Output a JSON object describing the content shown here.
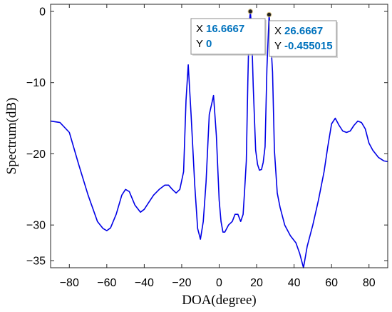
{
  "chart_data": {
    "type": "line",
    "title": "",
    "xlabel": "DOA(degree)",
    "ylabel": "Spectrum(dB)",
    "xlim": [
      -90,
      90
    ],
    "ylim": [
      -36,
      1
    ],
    "xticks": [
      -80,
      -60,
      -40,
      -20,
      0,
      20,
      40,
      60,
      80
    ],
    "yticks": [
      0,
      -10,
      -20,
      -30,
      -35
    ],
    "grid": false,
    "line_color": "#0000e6",
    "series": [
      {
        "name": "",
        "x": [
          -90,
          -85,
          -80,
          -75,
          -70,
          -65,
          -62,
          -60,
          -58,
          -55,
          -52,
          -50,
          -48,
          -45,
          -42,
          -40,
          -38,
          -35,
          -32,
          -29,
          -27,
          -25,
          -23,
          -21,
          -19,
          -17.7,
          -16.5,
          -15,
          -13,
          -11.5,
          -10,
          -8.5,
          -7,
          -5.3,
          -4,
          -3,
          -1.5,
          0,
          1,
          2,
          3,
          5,
          7,
          8.5,
          10,
          11.5,
          12.8,
          13.5,
          14.5,
          15.3,
          16,
          16.6667,
          17.3,
          18.2,
          19.5,
          20.5,
          21.5,
          22.6,
          23.5,
          24.5,
          25.5,
          26.6667,
          27.3,
          28.5,
          29.5,
          31,
          32.5,
          35,
          38,
          41,
          43,
          45,
          47,
          50,
          53,
          56,
          58,
          60,
          62,
          64,
          66,
          68,
          70,
          72,
          74,
          76,
          78,
          80,
          82,
          85,
          88,
          90
        ],
        "y": [
          -15.4,
          -15.6,
          -17.0,
          -21.5,
          -25.8,
          -29.5,
          -30.5,
          -30.8,
          -30.4,
          -28.5,
          -25.8,
          -25.0,
          -25.3,
          -27.2,
          -28.2,
          -27.8,
          -27.0,
          -25.8,
          -25.0,
          -24.4,
          -24.4,
          -25.0,
          -25.5,
          -25.0,
          -22.5,
          -12.5,
          -7.5,
          -14.5,
          -24.5,
          -30.5,
          -32.0,
          -29.5,
          -24.0,
          -14.5,
          -13.0,
          -11.8,
          -17.5,
          -26.5,
          -29.5,
          -31.0,
          -31.0,
          -30.0,
          -29.5,
          -28.5,
          -28.5,
          -29.5,
          -28.5,
          -25.5,
          -21.0,
          -10.0,
          -2.0,
          0.0,
          -2.5,
          -10.5,
          -19.5,
          -21.5,
          -22.3,
          -22.2,
          -21.2,
          -19.0,
          -8.0,
          -0.455015,
          -3.0,
          -8.5,
          -19.5,
          -25.5,
          -27.5,
          -30.0,
          -31.5,
          -32.5,
          -34.0,
          -36.0,
          -33.0,
          -30.0,
          -26.5,
          -22.5,
          -19.0,
          -15.8,
          -15.0,
          -16.0,
          -16.8,
          -17.0,
          -16.8,
          -16.0,
          -15.4,
          -15.6,
          -16.5,
          -18.5,
          -19.5,
          -20.5,
          -21.0,
          -21.1
        ]
      }
    ],
    "datatips": [
      {
        "x_key": "X",
        "x_val": "16.6667",
        "y_key": "Y",
        "y_val": "0",
        "x": 16.6667,
        "y": 0
      },
      {
        "x_key": "X",
        "x_val": "26.6667",
        "y_key": "Y",
        "y_val": "-0.455015",
        "x": 26.6667,
        "y": -0.455015
      }
    ],
    "datatip_value_color": "#0072bd"
  }
}
